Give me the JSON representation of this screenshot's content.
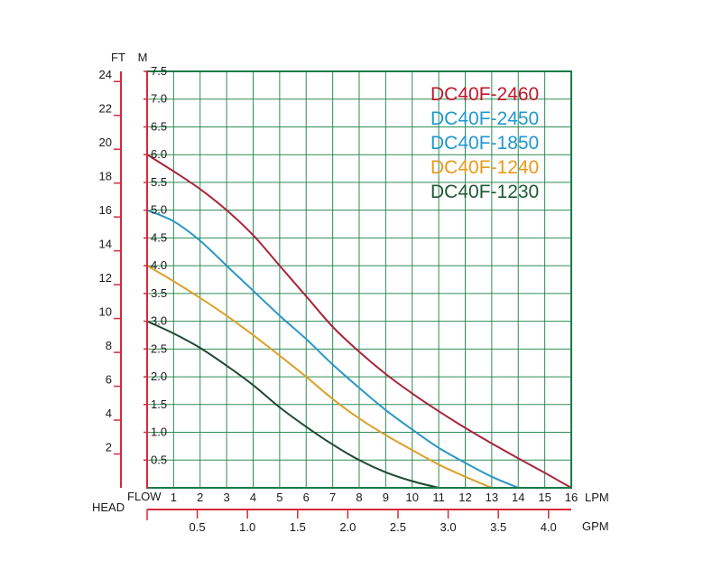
{
  "chart_data": {
    "type": "line",
    "title": "",
    "grid": true,
    "legend_position": "top-right",
    "x_axis": {
      "label": "FLOW",
      "unit": "LPM",
      "range": [
        0,
        16
      ],
      "ticks": [
        "1",
        "2",
        "3",
        "4",
        "5",
        "6",
        "7",
        "8",
        "9",
        "10",
        "11",
        "12",
        "13",
        "14",
        "15",
        "16"
      ]
    },
    "x2_axis": {
      "unit": "GPM",
      "range": [
        0,
        4.227
      ],
      "ticks": [
        "0.5",
        "1.0",
        "1.5",
        "2.0",
        "2.5",
        "3.0",
        "3.5",
        "4.0"
      ]
    },
    "y_axis": {
      "label": "HEAD",
      "unit": "M",
      "range": [
        0,
        7.5
      ],
      "ticks": [
        "0.5",
        "1.0",
        "1.5",
        "2.0",
        "2.5",
        "3.0",
        "3.5",
        "4.0",
        "4.5",
        "5.0",
        "5.5",
        "6.0",
        "6.5",
        "7.0",
        "7.5"
      ]
    },
    "y2_axis": {
      "unit": "FT",
      "range": [
        0,
        24.6
      ],
      "ticks": [
        "2",
        "4",
        "6",
        "8",
        "10",
        "12",
        "14",
        "16",
        "18",
        "20",
        "22",
        "24"
      ]
    },
    "series": [
      {
        "name": "DC40F-2460",
        "color": "#c0162a",
        "line_color": "#a8253c",
        "x": [
          0,
          1,
          2,
          3,
          4,
          5,
          6,
          7,
          8,
          9,
          10,
          11,
          12,
          13,
          14,
          15,
          16
        ],
        "y": [
          6.0,
          5.7,
          5.38,
          5.0,
          4.55,
          4.0,
          3.45,
          2.9,
          2.45,
          2.05,
          1.7,
          1.38,
          1.08,
          0.8,
          0.53,
          0.27,
          0.0
        ]
      },
      {
        "name": "DC40F-2450",
        "color": "#1f98d0",
        "line_color": "#2a98c4",
        "x": [
          0,
          1,
          2,
          3,
          4,
          5,
          6,
          7,
          8,
          9,
          10,
          11,
          12,
          13,
          14
        ],
        "y": [
          5.0,
          4.8,
          4.45,
          4.0,
          3.55,
          3.1,
          2.68,
          2.22,
          1.8,
          1.4,
          1.05,
          0.72,
          0.45,
          0.2,
          0.0
        ]
      },
      {
        "name": "DC40F-1850",
        "color": "#1f98d0",
        "line_color": "#2a98c4",
        "x": [],
        "y": []
      },
      {
        "name": "DC40F-1240",
        "color": "#e89a1a",
        "line_color": "#dca02a",
        "x": [
          0,
          1,
          2,
          3,
          4,
          5,
          6,
          7,
          8,
          9,
          10,
          11,
          12,
          13
        ],
        "y": [
          4.0,
          3.72,
          3.42,
          3.1,
          2.75,
          2.38,
          2.0,
          1.6,
          1.25,
          0.95,
          0.68,
          0.42,
          0.2,
          0.0
        ]
      },
      {
        "name": "DC40F-1230",
        "color": "#1d5a36",
        "line_color": "#1d4a32",
        "x": [
          0,
          1,
          2,
          3,
          4,
          5,
          6,
          7,
          8,
          9,
          10,
          11
        ],
        "y": [
          3.0,
          2.78,
          2.52,
          2.2,
          1.85,
          1.45,
          1.1,
          0.78,
          0.5,
          0.28,
          0.12,
          0.0
        ]
      }
    ]
  }
}
